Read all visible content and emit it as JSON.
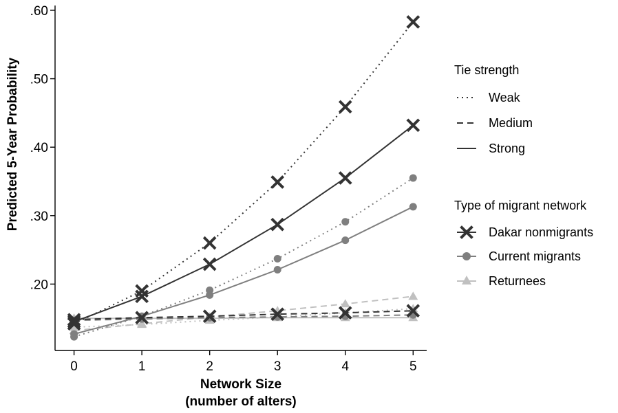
{
  "chart_data": {
    "type": "line",
    "xlabel_line1": "Network Size",
    "xlabel_line2": "(number of alters)",
    "ylabel": "Predicted 5-Year Probability",
    "x": [
      0,
      1,
      2,
      3,
      4,
      5
    ],
    "x_tick_labels": [
      "0",
      "1",
      "2",
      "3",
      "4",
      "5"
    ],
    "xlim": [
      -0.28,
      5.2
    ],
    "y_ticks": [
      0.2,
      0.3,
      0.4,
      0.5,
      0.6
    ],
    "y_tick_labels": [
      ".20",
      ".30",
      ".40",
      ".50",
      ".60"
    ],
    "ylim": [
      0.103,
      0.607
    ],
    "grid": false,
    "legend_position": "right",
    "legend_tie": {
      "title": "Tie strength",
      "items": [
        {
          "label": "Weak",
          "dash": "dotted"
        },
        {
          "label": "Medium",
          "dash": "dashed"
        },
        {
          "label": "Strong",
          "dash": "solid"
        }
      ]
    },
    "legend_network": {
      "title": "Type of migrant network",
      "items": [
        {
          "label": "Dakar nonmigrants",
          "marker": "x-icon",
          "color": "#333333"
        },
        {
          "label": "Current migrants",
          "marker": "circle-icon",
          "color": "#7f7f7f"
        },
        {
          "label": "Returnees",
          "marker": "triangle-icon",
          "color": "#c0c0c0"
        }
      ]
    },
    "series": [
      {
        "network": "Dakar nonmigrants",
        "tie": "Weak",
        "values": [
          0.142,
          0.19,
          0.26,
          0.349,
          0.459,
          0.583
        ]
      },
      {
        "network": "Dakar nonmigrants",
        "tie": "Medium",
        "values": [
          0.148,
          0.151,
          0.153,
          0.156,
          0.158,
          0.161
        ]
      },
      {
        "network": "Dakar nonmigrants",
        "tie": "Strong",
        "values": [
          0.145,
          0.182,
          0.229,
          0.287,
          0.355,
          0.432
        ]
      },
      {
        "network": "Current migrants",
        "tie": "Weak",
        "values": [
          0.123,
          0.153,
          0.191,
          0.237,
          0.291,
          0.355
        ]
      },
      {
        "network": "Current migrants",
        "tie": "Medium",
        "values": [
          0.147,
          0.149,
          0.151,
          0.152,
          0.153,
          0.155
        ]
      },
      {
        "network": "Current migrants",
        "tie": "Strong",
        "values": [
          0.127,
          0.153,
          0.184,
          0.221,
          0.264,
          0.313
        ]
      },
      {
        "network": "Returnees",
        "tie": "Weak",
        "values": [
          0.137,
          0.141,
          0.147,
          0.152,
          0.158,
          0.164
        ]
      },
      {
        "network": "Returnees",
        "tie": "Medium",
        "values": [
          0.132,
          0.142,
          0.152,
          0.161,
          0.171,
          0.182
        ]
      },
      {
        "network": "Returnees",
        "tie": "Strong",
        "values": [
          0.15,
          0.15,
          0.15,
          0.151,
          0.151,
          0.151
        ]
      }
    ]
  }
}
